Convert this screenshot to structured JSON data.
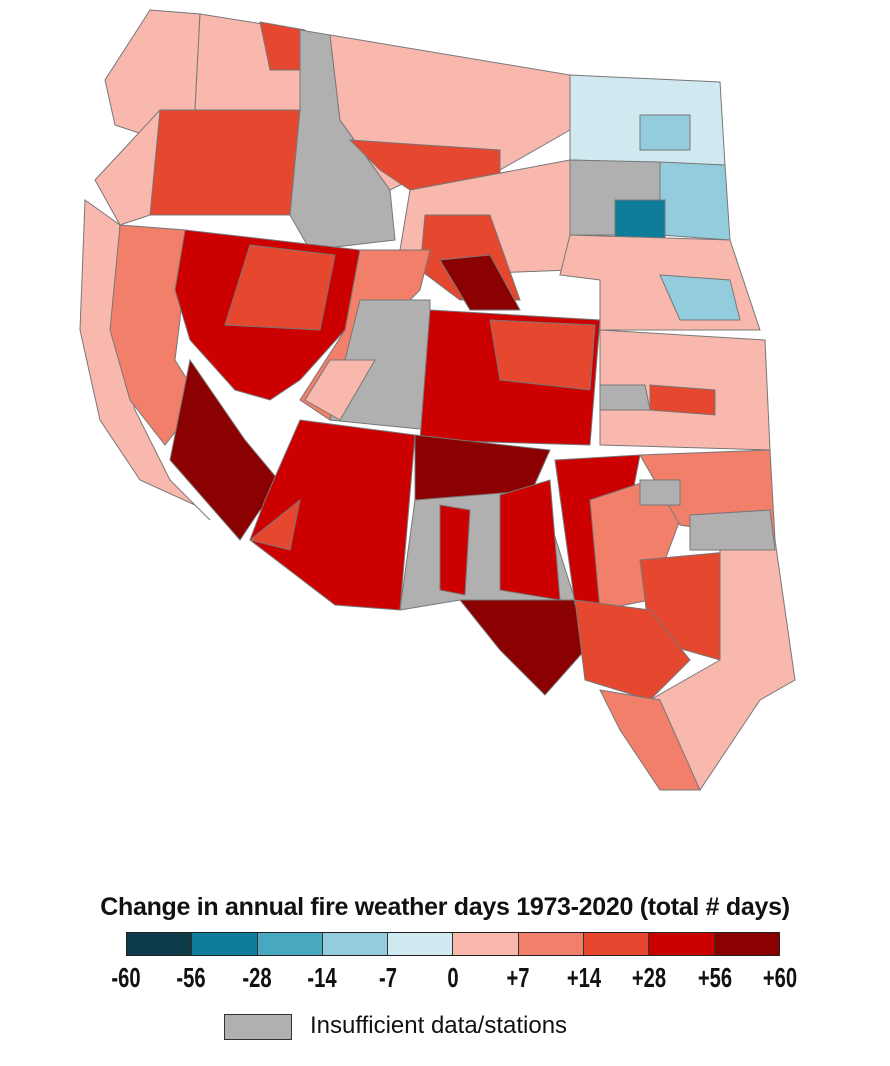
{
  "legend": {
    "title": "Change in annual fire weather days 1973-2020 (total # days)",
    "ticks": [
      "-60",
      "-56",
      "-28",
      "-14",
      "-7",
      "0",
      "+7",
      "+14",
      "+28",
      "+56",
      "+60"
    ],
    "colors": [
      "#0d3b4a",
      "#0e7d99",
      "#47a8c0",
      "#93cddd",
      "#d0e9f0",
      "#f9b8ae",
      "#f27f6a",
      "#e5482f",
      "#cc0000",
      "#8b0000"
    ],
    "insufficient_color": "#b0b0b0",
    "insufficient_label": "Insufficient data/stations"
  },
  "map": {
    "region": "Western United States",
    "region_classes": [
      5,
      5,
      7,
      7,
      5,
      10,
      5,
      7,
      4,
      3,
      10,
      3,
      1,
      5,
      7,
      9,
      5,
      3,
      5,
      6,
      8,
      7,
      9,
      6,
      10,
      5,
      8,
      7,
      5,
      7,
      10,
      8,
      7,
      9,
      10,
      8,
      8,
      9,
      8,
      6,
      7,
      7,
      6,
      5,
      6,
      10,
      10
    ]
  }
}
